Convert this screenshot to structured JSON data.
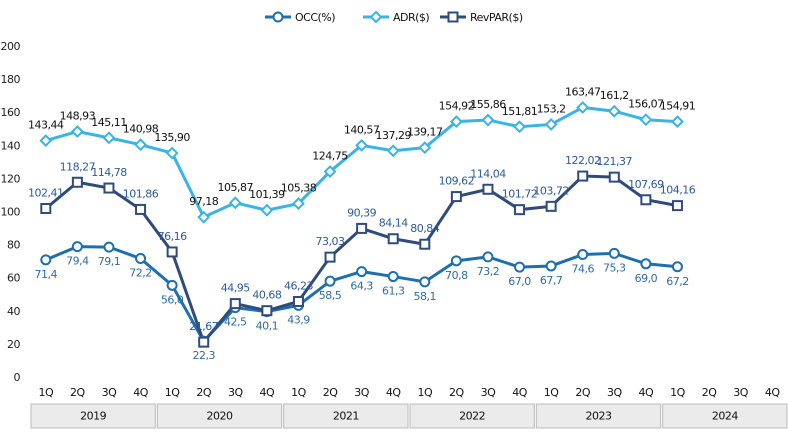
{
  "chart_data": {
    "type": "line",
    "categories": [
      "1Q",
      "2Q",
      "3Q",
      "4Q",
      "1Q",
      "2Q",
      "3Q",
      "4Q",
      "1Q",
      "2Q",
      "3Q",
      "4Q",
      "1Q",
      "2Q",
      "3Q",
      "4Q",
      "1Q",
      "2Q",
      "3Q",
      "4Q",
      "1Q",
      "2Q",
      "3Q",
      "4Q"
    ],
    "years": [
      "2019",
      "2020",
      "2021",
      "2022",
      "2023",
      "2024"
    ],
    "ylim": [
      0,
      200
    ],
    "yticks": [
      0,
      20,
      40,
      60,
      80,
      100,
      120,
      140,
      160,
      180,
      200
    ],
    "grid": false,
    "legend": "top",
    "series": [
      {
        "name": "OCC(%)",
        "color": "#1f6fae",
        "label_color": "#2e6da4",
        "marker": "circle",
        "label_side": "below",
        "values": [
          71.4,
          79.4,
          79.1,
          72.2,
          56.0,
          22.3,
          42.5,
          40.1,
          43.9,
          58.5,
          64.3,
          61.3,
          58.1,
          70.8,
          73.2,
          67.0,
          67.7,
          74.6,
          75.3,
          69.0,
          67.2,
          null,
          null,
          null
        ],
        "value_labels": [
          "71,4",
          "79,4",
          "79,1",
          "72,2",
          "56,0",
          "22,3",
          "42,5",
          "40,1",
          "43,9",
          "58,5",
          "64,3",
          "61,3",
          "58,1",
          "70,8",
          "73,2",
          "67,0",
          "67,7",
          "74,6",
          "75,3",
          "69,0",
          "67,2",
          null,
          null,
          null
        ]
      },
      {
        "name": "ADR($)",
        "color": "#3ab4e4",
        "label_color": "#111111",
        "marker": "diamond",
        "label_side": "above",
        "values": [
          143.44,
          148.93,
          145.11,
          140.98,
          135.9,
          97.18,
          105.87,
          101.39,
          105.38,
          124.75,
          140.57,
          137.29,
          139.17,
          154.92,
          155.86,
          151.81,
          153.2,
          163.47,
          161.2,
          156.07,
          154.91,
          null,
          null,
          null
        ],
        "value_labels": [
          "143,44",
          "148,93",
          "145,11",
          "140,98",
          "135,90",
          "97,18",
          "105,87",
          "101,39",
          "105,38",
          "124,75",
          "140,57",
          "137,29",
          "139,17",
          "154,92",
          "155,86",
          "151,81",
          "153,2",
          "163,47",
          "161,2",
          "156,07",
          "154,91",
          null,
          null,
          null
        ]
      },
      {
        "name": "RevPAR($)",
        "color": "#2f4b7c",
        "label_color": "#2f5a97",
        "marker": "square",
        "label_side": "above",
        "values": [
          102.41,
          118.27,
          114.78,
          101.86,
          76.16,
          21.67,
          44.95,
          40.68,
          46.23,
          73.03,
          90.39,
          84.14,
          80.84,
          109.62,
          114.04,
          101.72,
          103.72,
          122.02,
          121.37,
          107.69,
          104.16,
          null,
          null,
          null
        ],
        "value_labels": [
          "102,41",
          "118,27",
          "114,78",
          "101,86",
          "76,16",
          "21,67",
          "44,95",
          "40,68",
          "46,23",
          "73,03",
          "90,39",
          "84,14",
          "80,84",
          "109,62",
          "114,04",
          "101,72",
          "103,72",
          "122,02",
          "121,37",
          "107,69",
          "104,16",
          null,
          null,
          null
        ]
      }
    ]
  }
}
